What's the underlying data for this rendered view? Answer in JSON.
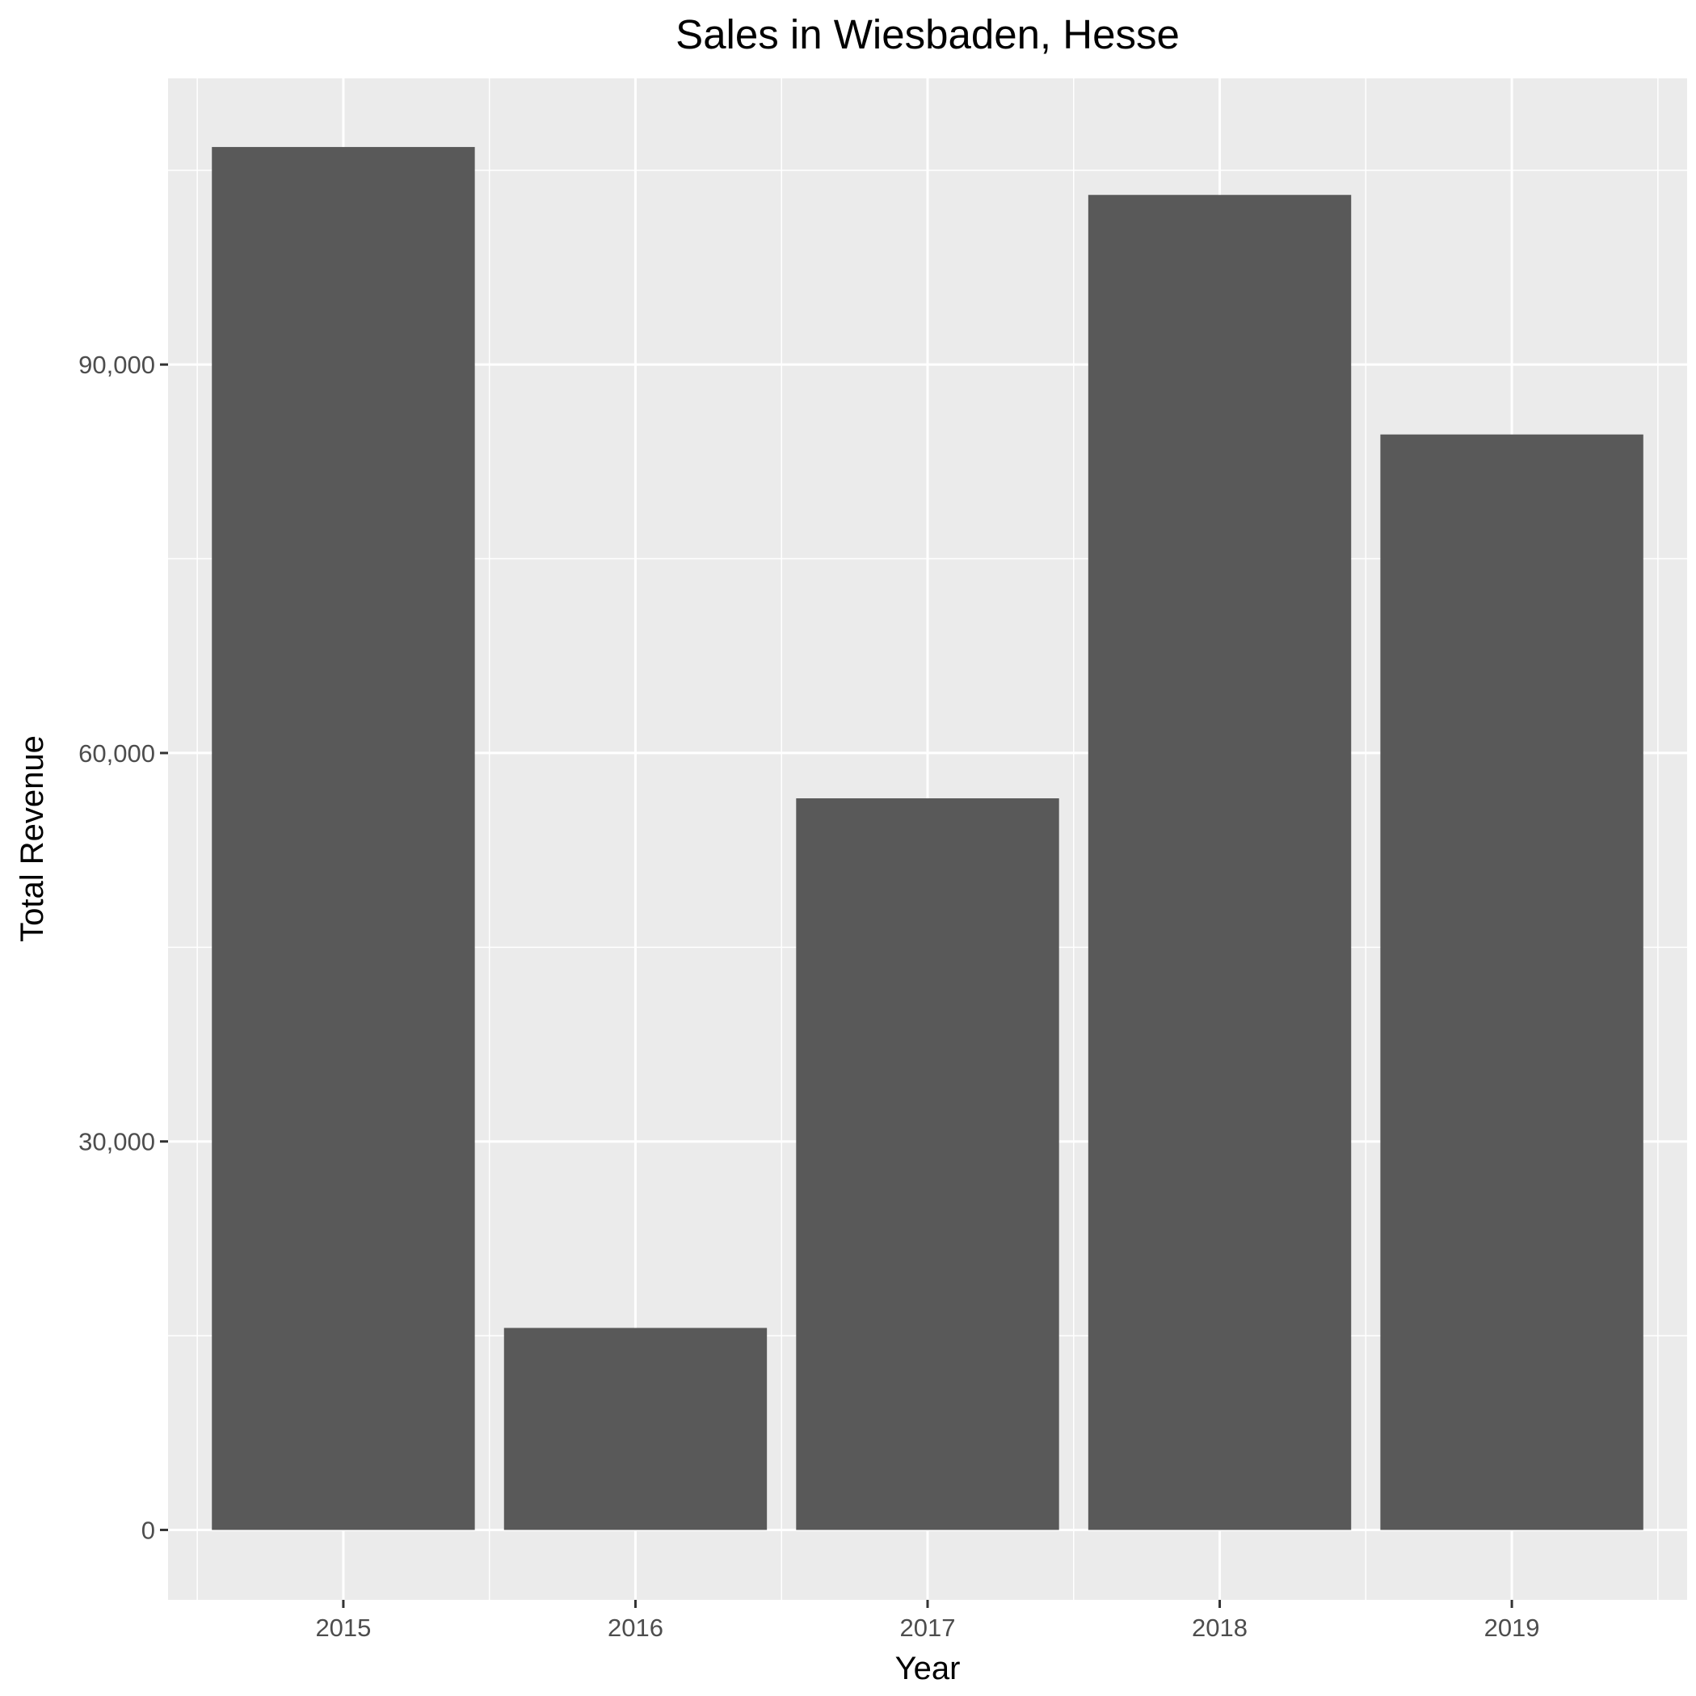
{
  "chart_data": {
    "type": "bar",
    "title": "Sales in Wiesbaden, Hesse",
    "xlabel": "Year",
    "ylabel": "Total Revenue",
    "categories": [
      "2015",
      "2016",
      "2017",
      "2018",
      "2019"
    ],
    "values": [
      106800,
      15600,
      56500,
      103100,
      84600
    ],
    "ylim": [
      -5400,
      112100
    ],
    "yticks": [
      0,
      30000,
      60000,
      90000
    ],
    "ytick_labels": [
      "0",
      "30,000",
      "60,000",
      "90,000"
    ],
    "grid": true,
    "legend": "none",
    "colors": {
      "bar": "#595959",
      "panel": "#ebebeb",
      "grid": "#ffffff",
      "tick": "#333333"
    }
  }
}
